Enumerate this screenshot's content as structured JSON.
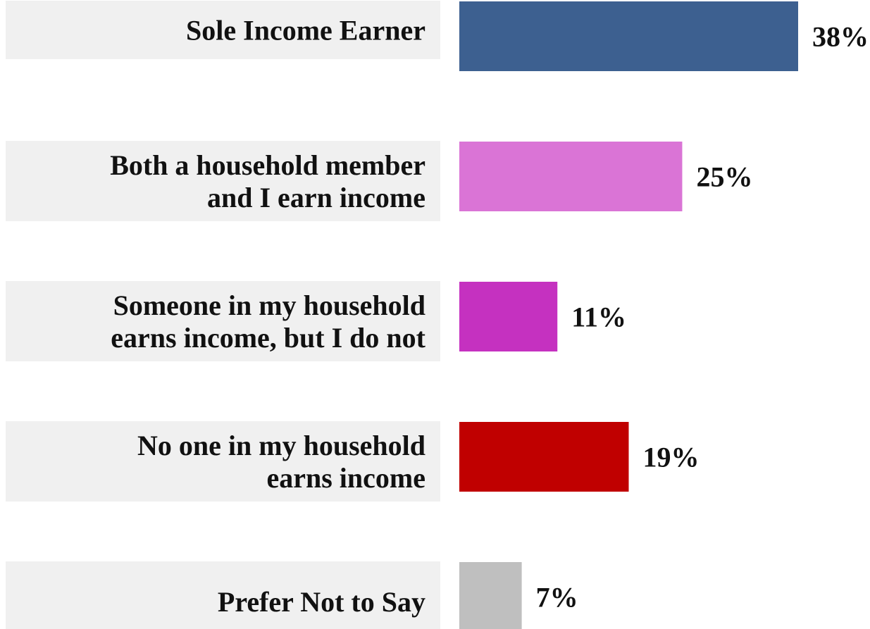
{
  "chart_data": {
    "type": "bar",
    "orientation": "horizontal",
    "categories": [
      [
        "Sole Income Earner"
      ],
      [
        "Both a household member",
        "and I earn income"
      ],
      [
        "Someone in my household",
        "earns income, but I do not"
      ],
      [
        "No one in my household",
        "earns income"
      ],
      [
        "Prefer Not to Say"
      ]
    ],
    "values": [
      38,
      25,
      11,
      19,
      7
    ],
    "value_labels": [
      "38%",
      "25%",
      "11%",
      "19%",
      "7%"
    ],
    "colors": [
      "#3d6090",
      "#da74d6",
      "#c531c0",
      "#c00000",
      "#bfbfbf"
    ],
    "label_background": "#f0f0f0",
    "title": "",
    "xlabel": "",
    "ylabel": "",
    "xlim": [
      0,
      38
    ],
    "grid": false,
    "legend": "none"
  }
}
